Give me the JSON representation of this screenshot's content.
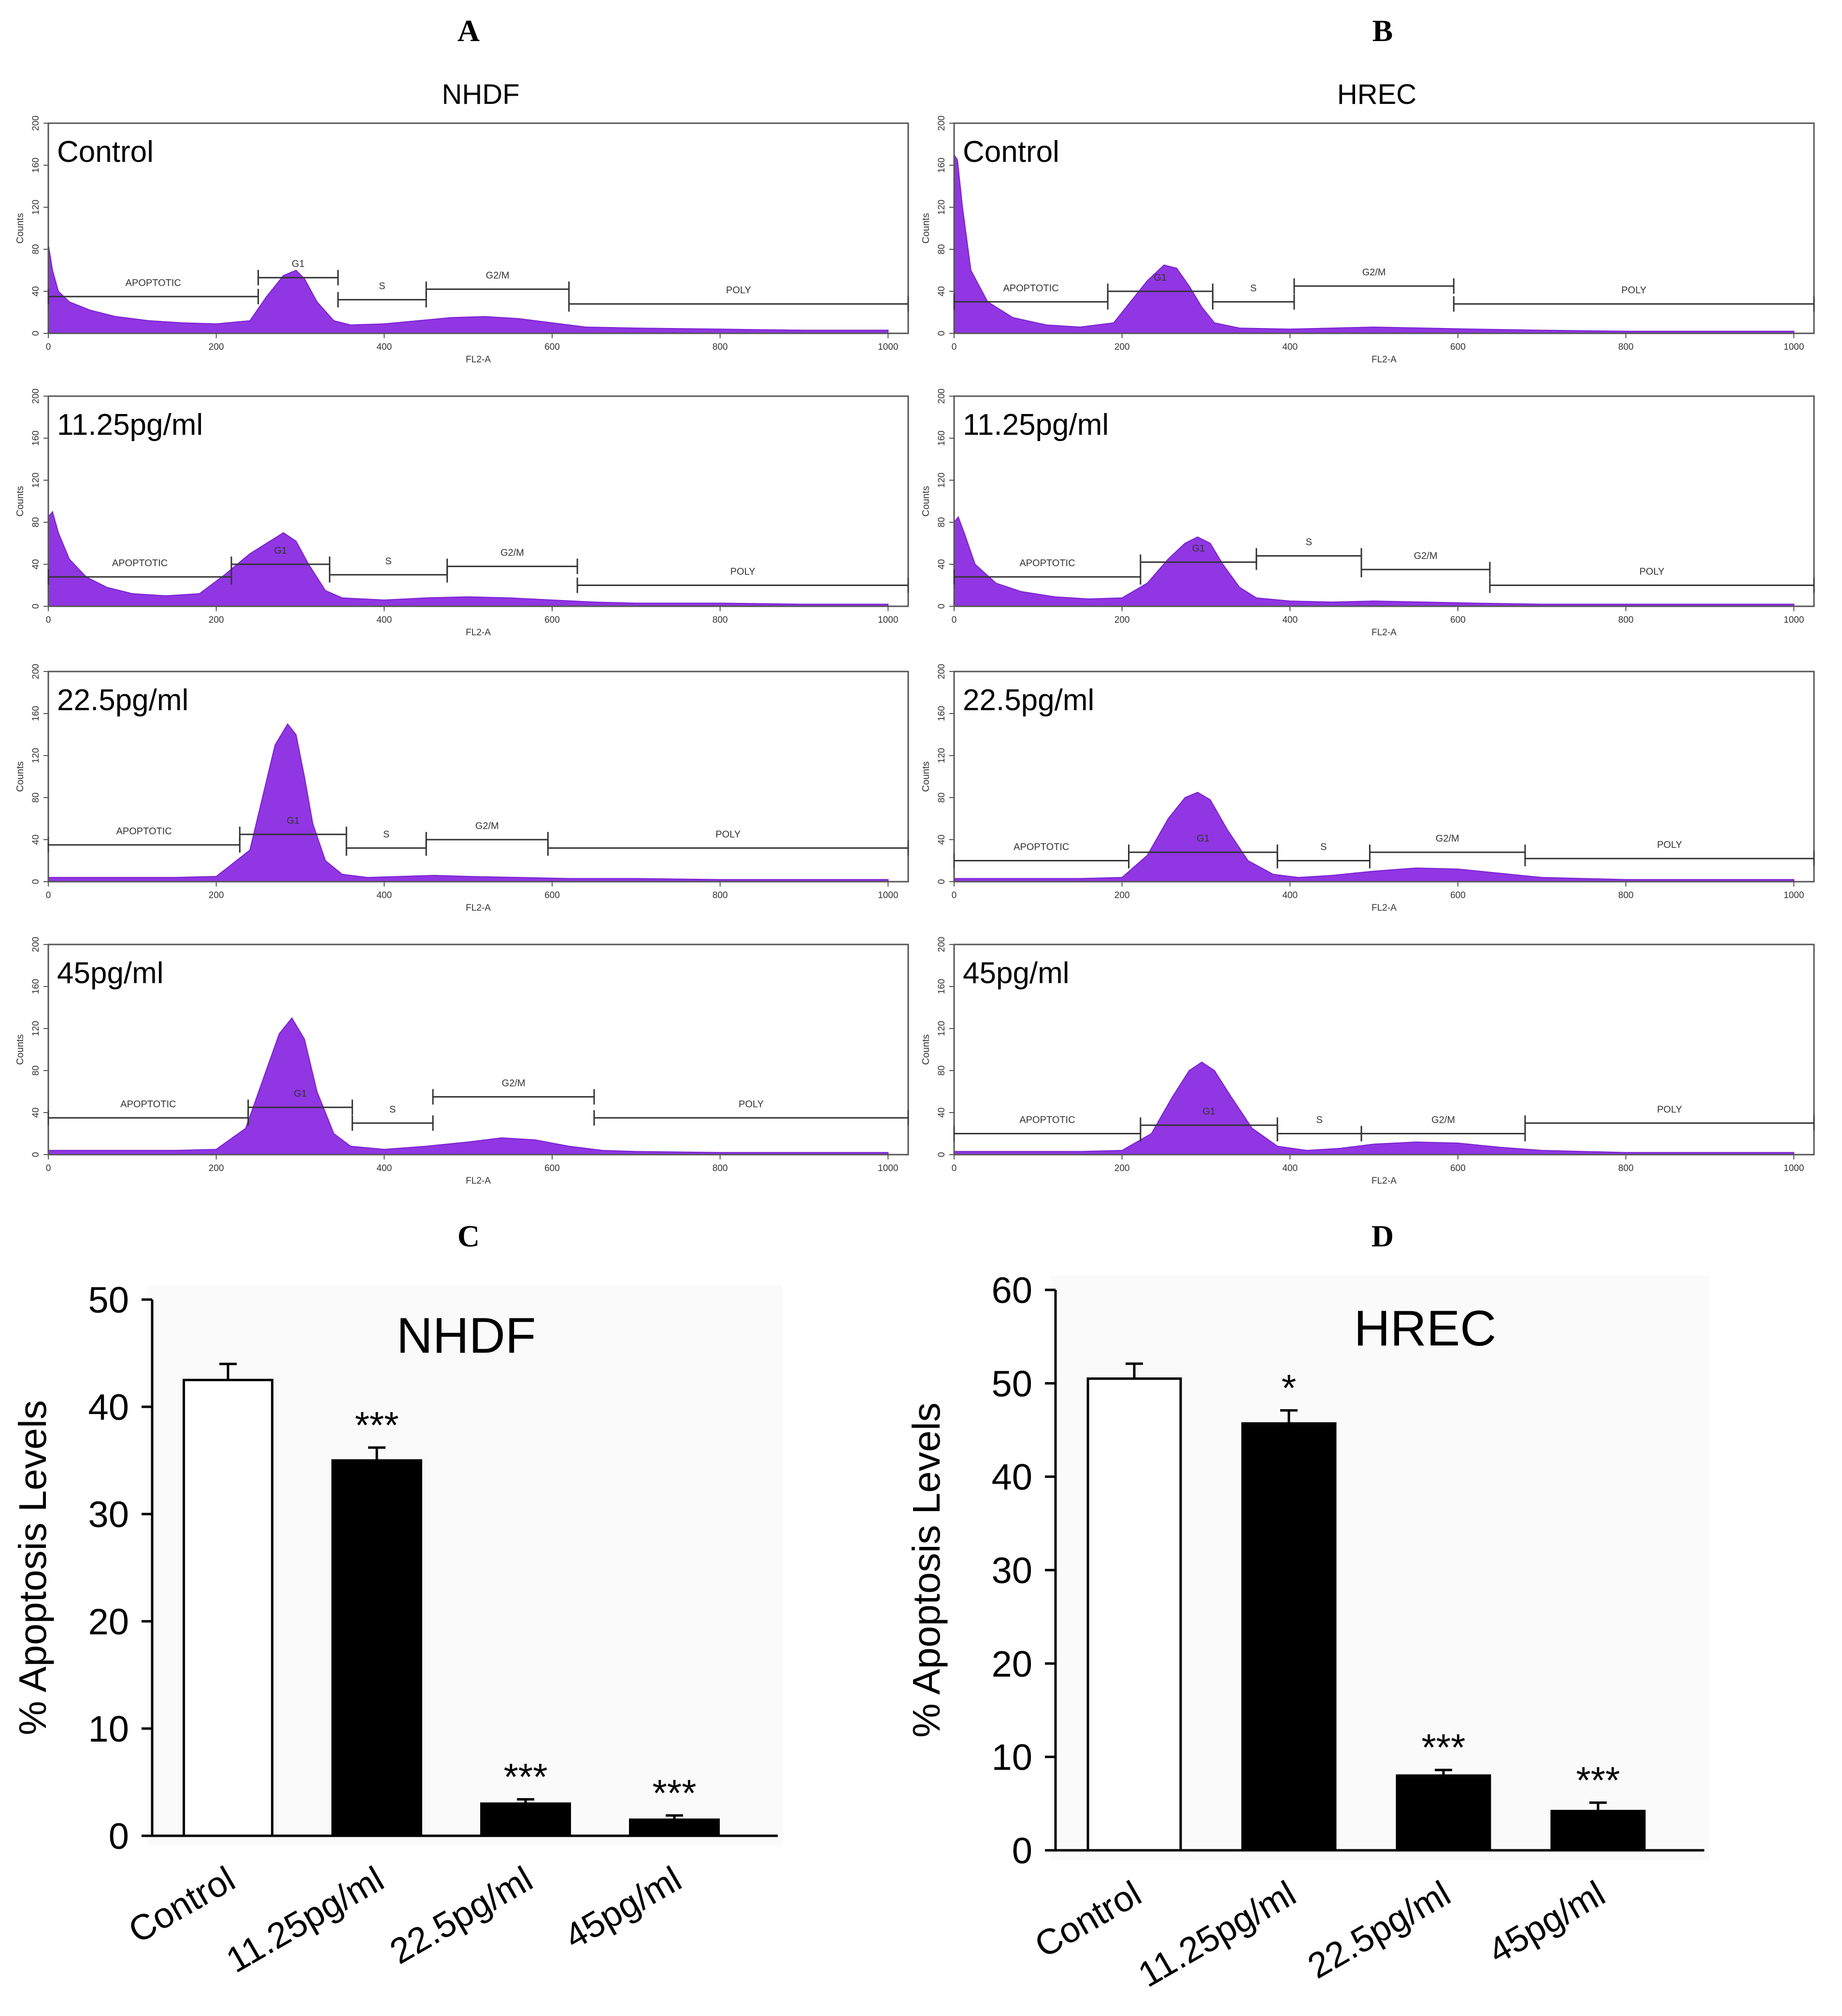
{
  "figure": {
    "panel_letters": [
      "A",
      "B",
      "C",
      "D"
    ]
  },
  "chart_data": [
    {
      "panel": "A",
      "type": "area",
      "title": "NHDF",
      "xlabel": "FL2-A",
      "ylabel": "Counts",
      "xlim": [
        0,
        1024
      ],
      "ylim": [
        0,
        200
      ],
      "xticks": [
        "0",
        "200",
        "400",
        "600",
        "800",
        "1000"
      ],
      "yticks": [
        "0",
        "40",
        "80",
        "120",
        "160",
        "200"
      ],
      "fill_color": "#8a2be2",
      "histograms": [
        {
          "name": "Control",
          "x": [
            0,
            5,
            12,
            25,
            50,
            80,
            120,
            160,
            200,
            240,
            260,
            280,
            295,
            305,
            320,
            340,
            360,
            400,
            440,
            480,
            520,
            560,
            600,
            640,
            700,
            800,
            900,
            1000
          ],
          "y": [
            85,
            60,
            40,
            30,
            22,
            16,
            12,
            10,
            9,
            12,
            35,
            55,
            60,
            52,
            30,
            12,
            8,
            9,
            12,
            15,
            16,
            14,
            10,
            6,
            5,
            4,
            3,
            3
          ],
          "gates": [
            {
              "label": "APOPTOTIC",
              "x0": 0,
              "x1": 250,
              "y": 35
            },
            {
              "label": "G1",
              "x0": 250,
              "x1": 345,
              "y": 53
            },
            {
              "label": "S",
              "x0": 345,
              "x1": 450,
              "y": 32
            },
            {
              "label": "G2/M",
              "x0": 450,
              "x1": 620,
              "y": 42
            },
            {
              "label": "POLY",
              "x0": 620,
              "x1": 1024,
              "y": 28
            }
          ]
        },
        {
          "name": "11.25pg/ml",
          "x": [
            0,
            5,
            12,
            25,
            45,
            70,
            100,
            140,
            180,
            210,
            240,
            260,
            280,
            295,
            310,
            330,
            350,
            400,
            450,
            500,
            550,
            600,
            650,
            700,
            800,
            900,
            1000
          ],
          "y": [
            85,
            90,
            70,
            45,
            28,
            18,
            12,
            10,
            12,
            30,
            50,
            60,
            70,
            62,
            40,
            15,
            8,
            6,
            8,
            9,
            8,
            6,
            4,
            3,
            3,
            2,
            2
          ],
          "gates": [
            {
              "label": "APOPTOTIC",
              "x0": 0,
              "x1": 218,
              "y": 28
            },
            {
              "label": "G1",
              "x0": 218,
              "x1": 335,
              "y": 40
            },
            {
              "label": "S",
              "x0": 335,
              "x1": 475,
              "y": 30
            },
            {
              "label": "G2/M",
              "x0": 475,
              "x1": 630,
              "y": 38
            },
            {
              "label": "POLY",
              "x0": 630,
              "x1": 1024,
              "y": 20
            }
          ]
        },
        {
          "name": "22.5pg/ml",
          "x": [
            0,
            50,
            100,
            150,
            200,
            240,
            255,
            270,
            285,
            295,
            305,
            315,
            330,
            350,
            380,
            420,
            460,
            500,
            560,
            620,
            700,
            800,
            900,
            1000
          ],
          "y": [
            4,
            4,
            4,
            4,
            5,
            30,
            80,
            130,
            150,
            140,
            100,
            55,
            20,
            7,
            4,
            5,
            6,
            5,
            4,
            3,
            3,
            2,
            2,
            2
          ],
          "gates": [
            {
              "label": "APOPTOTIC",
              "x0": 0,
              "x1": 228,
              "y": 35
            },
            {
              "label": "G1",
              "x0": 228,
              "x1": 355,
              "y": 45
            },
            {
              "label": "S",
              "x0": 355,
              "x1": 450,
              "y": 32
            },
            {
              "label": "G2/M",
              "x0": 450,
              "x1": 595,
              "y": 40
            },
            {
              "label": "POLY",
              "x0": 595,
              "x1": 1024,
              "y": 32
            }
          ]
        },
        {
          "name": "45pg/ml",
          "x": [
            0,
            50,
            100,
            150,
            200,
            235,
            255,
            275,
            290,
            305,
            320,
            340,
            360,
            400,
            450,
            500,
            540,
            580,
            620,
            660,
            700,
            800,
            900,
            1000
          ],
          "y": [
            4,
            4,
            4,
            4,
            5,
            25,
            70,
            115,
            130,
            110,
            60,
            20,
            8,
            5,
            8,
            12,
            16,
            14,
            8,
            4,
            3,
            2,
            2,
            2
          ],
          "gates": [
            {
              "label": "APOPTOTIC",
              "x0": 0,
              "x1": 238,
              "y": 35
            },
            {
              "label": "G1",
              "x0": 238,
              "x1": 362,
              "y": 45
            },
            {
              "label": "S",
              "x0": 362,
              "x1": 458,
              "y": 30
            },
            {
              "label": "G2/M",
              "x0": 458,
              "x1": 650,
              "y": 55
            },
            {
              "label": "POLY",
              "x0": 650,
              "x1": 1024,
              "y": 35
            }
          ]
        }
      ]
    },
    {
      "panel": "B",
      "type": "area",
      "title": "HREC",
      "xlabel": "FL2-A",
      "ylabel": "Counts",
      "xlim": [
        0,
        1024
      ],
      "ylim": [
        0,
        200
      ],
      "xticks": [
        "0",
        "200",
        "400",
        "600",
        "800",
        "1000"
      ],
      "yticks": [
        "0",
        "40",
        "80",
        "120",
        "160",
        "200"
      ],
      "fill_color": "#8a2be2",
      "histograms": [
        {
          "name": "Control",
          "x": [
            0,
            4,
            10,
            20,
            40,
            70,
            110,
            150,
            190,
            210,
            230,
            250,
            265,
            280,
            295,
            310,
            340,
            400,
            450,
            500,
            560,
            620,
            700,
            800,
            900,
            1000
          ],
          "y": [
            170,
            165,
            120,
            60,
            30,
            15,
            8,
            6,
            10,
            30,
            50,
            65,
            62,
            45,
            25,
            10,
            5,
            4,
            5,
            6,
            5,
            4,
            3,
            2,
            2,
            2
          ],
          "gates": [
            {
              "label": "APOPTOTIC",
              "x0": 0,
              "x1": 183,
              "y": 30
            },
            {
              "label": "G1",
              "x0": 183,
              "x1": 308,
              "y": 40
            },
            {
              "label": "S",
              "x0": 308,
              "x1": 405,
              "y": 30
            },
            {
              "label": "G2/M",
              "x0": 405,
              "x1": 595,
              "y": 45
            },
            {
              "label": "POLY",
              "x0": 595,
              "x1": 1024,
              "y": 28
            }
          ]
        },
        {
          "name": "11.25pg/ml",
          "x": [
            0,
            5,
            12,
            25,
            50,
            80,
            120,
            160,
            200,
            230,
            255,
            275,
            290,
            305,
            320,
            340,
            360,
            400,
            450,
            500,
            560,
            620,
            700,
            800,
            900,
            1000
          ],
          "y": [
            80,
            85,
            70,
            40,
            22,
            14,
            9,
            7,
            8,
            22,
            45,
            60,
            66,
            60,
            40,
            18,
            8,
            5,
            4,
            5,
            4,
            3,
            2,
            2,
            2,
            2
          ],
          "gates": [
            {
              "label": "APOPTOTIC",
              "x0": 0,
              "x1": 222,
              "y": 28
            },
            {
              "label": "G1",
              "x0": 222,
              "x1": 360,
              "y": 42
            },
            {
              "label": "S",
              "x0": 360,
              "x1": 485,
              "y": 48
            },
            {
              "label": "G2/M",
              "x0": 485,
              "x1": 638,
              "y": 35
            },
            {
              "label": "POLY",
              "x0": 638,
              "x1": 1024,
              "y": 20
            }
          ]
        },
        {
          "name": "22.5pg/ml",
          "x": [
            0,
            50,
            100,
            150,
            200,
            230,
            255,
            275,
            290,
            305,
            325,
            350,
            380,
            410,
            450,
            500,
            550,
            600,
            650,
            700,
            800,
            900,
            1000
          ],
          "y": [
            3,
            3,
            3,
            3,
            4,
            25,
            60,
            80,
            85,
            78,
            50,
            20,
            7,
            4,
            6,
            10,
            13,
            12,
            8,
            4,
            2,
            2,
            2
          ],
          "gates": [
            {
              "label": "APOPTOTIC",
              "x0": 0,
              "x1": 208,
              "y": 20
            },
            {
              "label": "G1",
              "x0": 208,
              "x1": 385,
              "y": 28
            },
            {
              "label": "S",
              "x0": 385,
              "x1": 495,
              "y": 20
            },
            {
              "label": "G2/M",
              "x0": 495,
              "x1": 680,
              "y": 28
            },
            {
              "label": "POLY",
              "x0": 680,
              "x1": 1024,
              "y": 22
            }
          ]
        },
        {
          "name": "45pg/ml",
          "x": [
            0,
            50,
            100,
            150,
            200,
            235,
            260,
            280,
            295,
            310,
            330,
            355,
            385,
            420,
            460,
            500,
            550,
            600,
            650,
            700,
            800,
            900,
            1000
          ],
          "y": [
            3,
            3,
            3,
            3,
            4,
            20,
            55,
            80,
            88,
            80,
            55,
            25,
            8,
            4,
            6,
            10,
            12,
            11,
            7,
            4,
            2,
            2,
            2
          ],
          "gates": [
            {
              "label": "APOPTOTIC",
              "x0": 0,
              "x1": 222,
              "y": 20
            },
            {
              "label": "G1",
              "x0": 222,
              "x1": 385,
              "y": 28
            },
            {
              "label": "S",
              "x0": 385,
              "x1": 485,
              "y": 20
            },
            {
              "label": "G2/M",
              "x0": 485,
              "x1": 680,
              "y": 20
            },
            {
              "label": "POLY",
              "x0": 680,
              "x1": 1024,
              "y": 30
            }
          ]
        }
      ]
    },
    {
      "panel": "C",
      "type": "bar",
      "title": "NHDF",
      "xlabel": "",
      "ylabel": "% Apoptosis Levels",
      "ylim": [
        0,
        50
      ],
      "yticks": [
        "0",
        "10",
        "20",
        "30",
        "40",
        "50"
      ],
      "categories": [
        "Control",
        "11.25pg/ml",
        "22.5pg/ml",
        "45pg/ml"
      ],
      "values": [
        42.5,
        35,
        3,
        1.5
      ],
      "errors": [
        1.5,
        1.2,
        0.4,
        0.4
      ],
      "significance": [
        "",
        "***",
        "***",
        "***"
      ],
      "bar_fill": [
        "#ffffff",
        "#000000",
        "#000000",
        "#000000"
      ]
    },
    {
      "panel": "D",
      "type": "bar",
      "title": "HREC",
      "xlabel": "",
      "ylabel": "% Apoptosis Levels",
      "ylim": [
        0,
        60
      ],
      "yticks": [
        "0",
        "10",
        "20",
        "30",
        "40",
        "50",
        "60"
      ],
      "categories": [
        "Control",
        "11.25pg/ml",
        "22.5pg/ml",
        "45pg/ml"
      ],
      "values": [
        50.5,
        45.7,
        8,
        4.2
      ],
      "errors": [
        1.6,
        1.4,
        0.6,
        0.9
      ],
      "significance": [
        "",
        "*",
        "***",
        "***"
      ],
      "bar_fill": [
        "#ffffff",
        "#000000",
        "#000000",
        "#000000"
      ]
    }
  ]
}
